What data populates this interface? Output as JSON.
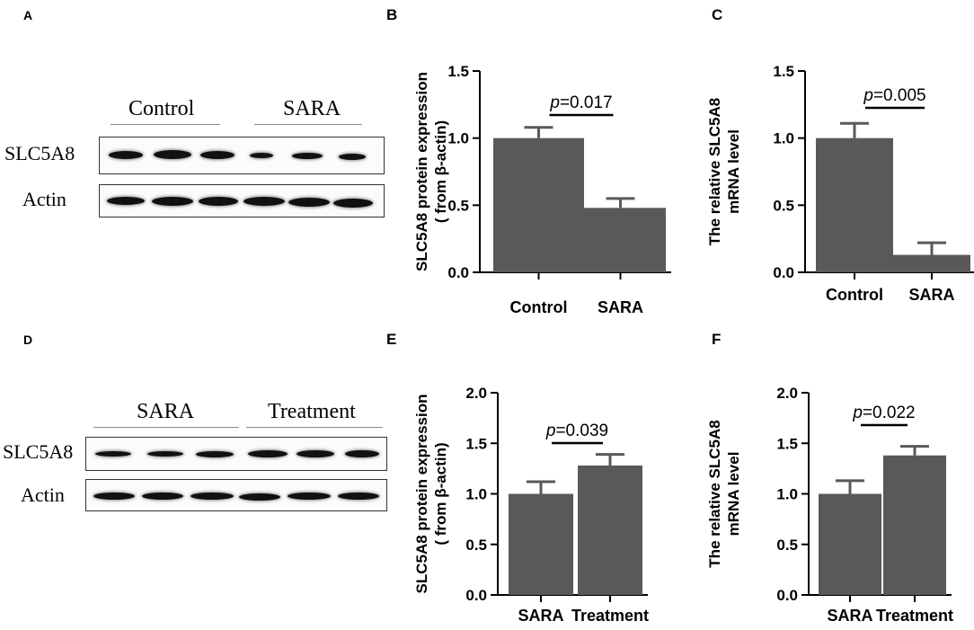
{
  "panels": {
    "A": {
      "label": "A",
      "groups": [
        "Control",
        "SARA"
      ],
      "rows": [
        "SLC5A8",
        "Actin"
      ]
    },
    "D": {
      "label": "D",
      "groups": [
        "SARA",
        "Treatment"
      ],
      "rows": [
        "SLC5A8",
        "Actin"
      ]
    }
  },
  "chart_data": [
    {
      "panel": "B",
      "type": "bar",
      "categories": [
        "Control",
        "SARA"
      ],
      "values": [
        1.0,
        0.48
      ],
      "errors": [
        0.08,
        0.07
      ],
      "ylabel_line1": "SLC5A8 protein expression",
      "ylabel_line2": "( from β-actin)",
      "ylim": [
        0,
        1.5
      ],
      "yticks": [
        "0.0",
        "0.5",
        "1.0",
        "1.5"
      ],
      "p_label": "p",
      "p_value": "=0.017",
      "bar_color": "#595959"
    },
    {
      "panel": "C",
      "type": "bar",
      "categories": [
        "Control",
        "SARA"
      ],
      "values": [
        1.0,
        0.13
      ],
      "errors": [
        0.11,
        0.09
      ],
      "ylabel_line1": "The relative SLC5A8",
      "ylabel_line2": "mRNA level",
      "ylim": [
        0,
        1.5
      ],
      "yticks": [
        "0.0",
        "0.5",
        "1.0",
        "1.5"
      ],
      "p_label": "p",
      "p_value": "=0.005",
      "bar_color": "#595959"
    },
    {
      "panel": "E",
      "type": "bar",
      "categories": [
        "SARA",
        "Treatment"
      ],
      "values": [
        1.0,
        1.28
      ],
      "errors": [
        0.12,
        0.11
      ],
      "ylabel_line1": "SLC5A8 protein expression",
      "ylabel_line2": "( from β-actin)",
      "ylim": [
        0,
        2.0
      ],
      "yticks": [
        "0.0",
        "0.5",
        "1.0",
        "1.5",
        "2.0"
      ],
      "p_label": "p",
      "p_value": "=0.039",
      "bar_color": "#595959"
    },
    {
      "panel": "F",
      "type": "bar",
      "categories": [
        "SARA",
        "Treatment"
      ],
      "values": [
        1.0,
        1.38
      ],
      "errors": [
        0.13,
        0.09
      ],
      "ylabel_line1": "The relative SLC5A8",
      "ylabel_line2": "mRNA level",
      "ylim": [
        0,
        2.0
      ],
      "yticks": [
        "0.0",
        "0.5",
        "1.0",
        "1.5",
        "2.0"
      ],
      "p_label": "p",
      "p_value": "=0.022",
      "bar_color": "#595959"
    }
  ]
}
